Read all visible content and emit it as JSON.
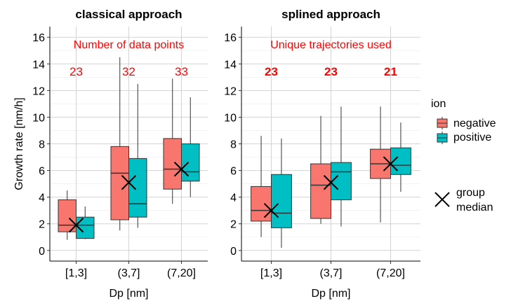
{
  "colors": {
    "negative": "#F8766D",
    "positive": "#00BFC4",
    "annotation": "#FF0000",
    "grid": "#D3D3D3",
    "axis": "#000000"
  },
  "chart_data": [
    {
      "type": "box",
      "title": "classical approach",
      "annotation": "Number of data points",
      "xlabel": "Dp [nm]",
      "ylabel": "Growth rate [nm/h]",
      "ylim": [
        -0.8,
        16.8
      ],
      "yticks": [
        0,
        2,
        4,
        6,
        8,
        10,
        12,
        14,
        16
      ],
      "grid": true,
      "categories": [
        "[1,3]",
        "(3,7]",
        "(7,20]"
      ],
      "counts": [
        "23",
        "32",
        "33"
      ],
      "counts_bold": false,
      "series": [
        {
          "name": "negative",
          "boxes": [
            {
              "min": 0.8,
              "q1": 1.4,
              "median": 1.9,
              "q3": 3.8,
              "max": 4.5
            },
            {
              "min": 1.5,
              "q1": 2.3,
              "median": 5.8,
              "q3": 7.8,
              "max": 14.5
            },
            {
              "min": 3.5,
              "q1": 4.6,
              "median": 6.1,
              "q3": 8.4,
              "max": 12.9
            }
          ]
        },
        {
          "name": "positive",
          "boxes": [
            {
              "min": 0.85,
              "q1": 0.9,
              "median": 1.9,
              "q3": 2.5,
              "max": 3.3
            },
            {
              "min": 1.7,
              "q1": 2.5,
              "median": 3.5,
              "q3": 6.9,
              "max": 12.5
            },
            {
              "min": 4.0,
              "q1": 5.2,
              "median": 5.9,
              "q3": 8.0,
              "max": 11.5
            }
          ]
        }
      ],
      "group_medians": [
        1.9,
        5.1,
        6.1
      ]
    },
    {
      "type": "box",
      "title": "splined approach",
      "annotation": "Unique trajectories used",
      "xlabel": "Dp [nm]",
      "ylabel": "",
      "ylim": [
        -0.8,
        16.8
      ],
      "yticks": [
        0,
        2,
        4,
        6,
        8,
        10,
        12,
        14,
        16
      ],
      "grid": true,
      "categories": [
        "[1,3]",
        "(3,7]",
        "(7,20]"
      ],
      "counts": [
        "23",
        "23",
        "21"
      ],
      "counts_bold": true,
      "series": [
        {
          "name": "negative",
          "boxes": [
            {
              "min": 1.0,
              "q1": 2.2,
              "median": 3.0,
              "q3": 4.8,
              "max": 8.6
            },
            {
              "min": 2.0,
              "q1": 2.4,
              "median": 4.9,
              "q3": 6.5,
              "max": 10.1
            },
            {
              "min": 2.1,
              "q1": 5.4,
              "median": 6.5,
              "q3": 7.6,
              "max": 10.8
            }
          ]
        },
        {
          "name": "positive",
          "boxes": [
            {
              "min": 0.2,
              "q1": 1.7,
              "median": 2.8,
              "q3": 5.7,
              "max": 8.4
            },
            {
              "min": 1.8,
              "q1": 3.8,
              "median": 5.9,
              "q3": 6.6,
              "max": 10.8
            },
            {
              "min": 4.4,
              "q1": 5.7,
              "median": 6.4,
              "q3": 7.7,
              "max": 9.6
            }
          ]
        }
      ],
      "group_medians": [
        3.0,
        5.1,
        6.5
      ]
    }
  ],
  "legend": {
    "title": "ion",
    "items": [
      "negative",
      "positive"
    ],
    "median_label_line1": "group",
    "median_label_line2": "median"
  }
}
